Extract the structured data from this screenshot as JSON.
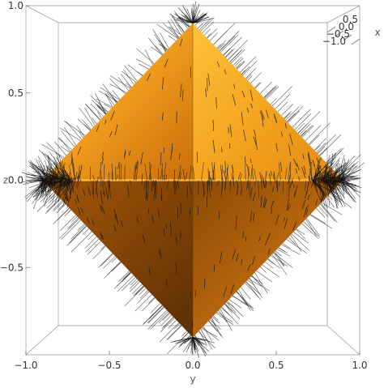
{
  "chart_data": {
    "type": "3d-surface-with-normal-vectors",
    "surface": "octahedron |x|+|y|+|z|=1 viewed along x axis",
    "surface_color": "#f09a1c",
    "vector_color": "#111111",
    "view": "front (y horizontal, z vertical)",
    "x_axis": {
      "label": "y",
      "range": [
        -1.0,
        1.0
      ],
      "ticks": [
        -1.0,
        -0.5,
        0.0,
        0.5,
        1.0
      ],
      "tick_labels": [
        "−1.0",
        "−0.5",
        "0.0",
        "0.5",
        "1.0"
      ]
    },
    "y_axis": {
      "label": "z",
      "range": [
        -1.0,
        1.0
      ],
      "ticks": [
        -0.5,
        0.0,
        0.5,
        1.0
      ],
      "tick_labels": [
        "−0.5",
        "0.0",
        "0.5",
        "1.0"
      ]
    },
    "depth_axis": {
      "label": "x",
      "ticks": [
        0.5,
        0.0,
        -0.5,
        -1.0
      ],
      "tick_labels": [
        "0.5",
        "0.0",
        "−0.5",
        "−1.0"
      ]
    },
    "vertices": [
      [
        0.0,
        0.9
      ],
      [
        0.9,
        0.0
      ],
      [
        0.0,
        -0.9
      ],
      [
        -0.9,
        0.0
      ]
    ],
    "grid": false,
    "box": true
  }
}
